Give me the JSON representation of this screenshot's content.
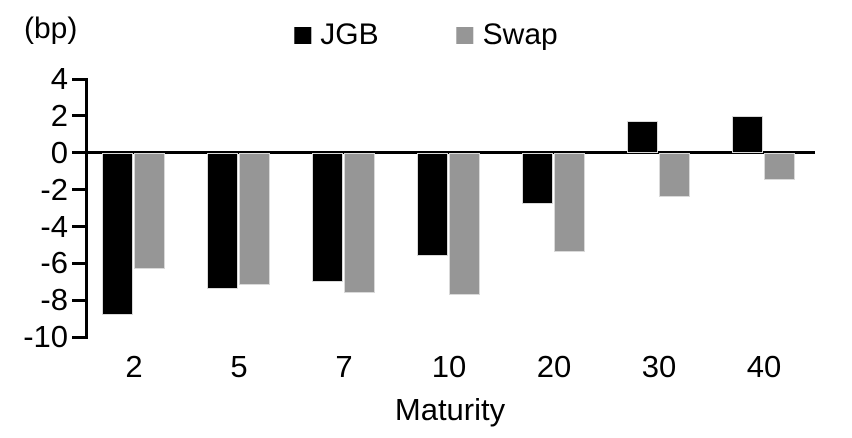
{
  "chart_data": {
    "type": "bar",
    "title": "",
    "unit_label": "(bp)",
    "xlabel": "Maturity",
    "ylabel": "",
    "categories": [
      "2",
      "5",
      "7",
      "10",
      "20",
      "30",
      "40"
    ],
    "series": [
      {
        "name": "JGB",
        "color": "#000000",
        "values": [
          -8.8,
          -7.4,
          -7.0,
          -5.6,
          -2.8,
          1.7,
          2.0
        ]
      },
      {
        "name": "Swap",
        "color": "#969696",
        "values": [
          -6.3,
          -7.2,
          -7.6,
          -7.7,
          -5.4,
          -2.4,
          -1.5
        ]
      }
    ],
    "ylim": [
      -10,
      4
    ],
    "ytick_step": 2,
    "yticks": [
      4,
      2,
      0,
      -2,
      -4,
      -6,
      -8,
      -10
    ],
    "grid": false,
    "legend_position": "top",
    "baseline": 0,
    "colors": {
      "axis": "#000000",
      "background": "#ffffff",
      "bar_edge": "#d9d9d9"
    }
  }
}
